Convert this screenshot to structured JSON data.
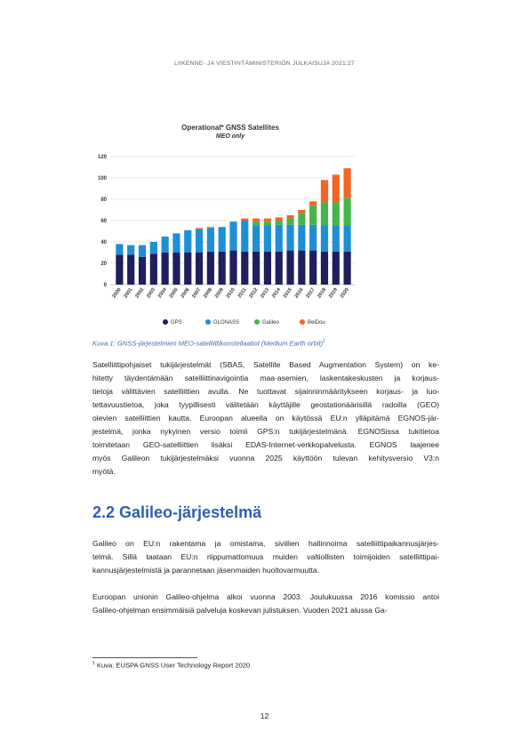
{
  "header": "LIIKENNE- JA VIESTINTÄMINISTERIÖN JULKAISUJA 2021:27",
  "figure": {
    "caption": "Kuva 1: GNSS-järjestelmien MEO-satelliittikonstellaatiot (Medium Earth orbit)",
    "caption_ref": "1"
  },
  "chart_data": {
    "type": "bar",
    "stacked": true,
    "title": "Operational* GNSS Satellites",
    "subtitle": "MEO only",
    "categories": [
      "2000",
      "2001",
      "2002",
      "2003",
      "2004",
      "2005",
      "2006",
      "2007",
      "2008",
      "2009",
      "2010",
      "2011",
      "2012",
      "2013",
      "2014",
      "2015",
      "2016",
      "2017",
      "2018",
      "2019",
      "2020"
    ],
    "ylim": [
      0,
      120
    ],
    "yticks": [
      0,
      20,
      40,
      60,
      80,
      100,
      120
    ],
    "grid": true,
    "legend_position": "bottom",
    "series": [
      {
        "name": "GPS",
        "color": "#1f1f5e",
        "values": [
          28,
          28,
          26,
          29,
          30,
          30,
          30,
          30,
          31,
          31,
          32,
          31,
          31,
          31,
          31,
          32,
          32,
          32,
          31,
          31,
          31
        ]
      },
      {
        "name": "GLONASS",
        "color": "#1e8fd5",
        "values": [
          10,
          9,
          11,
          11,
          15,
          18,
          21,
          22,
          22,
          23,
          27,
          29,
          24,
          24,
          25,
          24,
          24,
          24,
          24,
          24,
          24
        ]
      },
      {
        "name": "Galileo",
        "color": "#43b649",
        "values": [
          0,
          0,
          0,
          0,
          0,
          0,
          0,
          0,
          0,
          0,
          0,
          0,
          4,
          4,
          4,
          6,
          11,
          18,
          22,
          22,
          26
        ]
      },
      {
        "name": "BeiDou",
        "color": "#f26524",
        "values": [
          0,
          0,
          0,
          0,
          0,
          0,
          0,
          1,
          1,
          0,
          0,
          2,
          3,
          3,
          3,
          3,
          3,
          4,
          21,
          26,
          28
        ]
      }
    ]
  },
  "paragraph1": [
    "Satelliittipohjaiset tukijärjestelmät (SBAS, Satellite Based Augmentation System) on ke-",
    "hitetty täydentämään satelliittinavigointia maa-asemien, laskentakeskusten ja korjaus-",
    "tietoja välittävien satelliittien avulla. Ne tuottavat sijainninmääritykseen korjaus- ja luo-",
    "tettavuustietoa, joka tyypillisesti välitetään käyttäjille geostationäärisillä radoilla (GEO)",
    "olevien satelliittien kautta. Euroopan alueella on käytössä EU:n ylläpitämä EGNOS-jär-",
    "jestelmä, jonka nykyinen versio toimii GPS:n tukijärjestelmänä. EGNOSissa tukitietoa",
    "toimitetaan GEO-satelliittien lisäksi EDAS-Internet-verkkopalvelusta. EGNOS laajenee",
    "myös Galileon tukijärjestelmäksi vuonna 2025 käyttöön tulevan kehitysversio V3:n",
    "myötä."
  ],
  "heading": "2.2 Galileo-järjestelmä",
  "paragraph2": [
    "Galileo on EU:n rakentama ja omistama, siviilien hallinnoima satelliittipaikannusjärjes-",
    "telmä. Sillä taataan EU:n riippumattomuus muiden valtiollisten toimijoiden satelliittipai-",
    "kannusjärjestelmistä ja parannetaan jäsenmaiden huoltovarmuutta."
  ],
  "paragraph3": [
    "Euroopan unionin Galileo-ohjelma alkoi vuonna 2003. Joulukuussa 2016 komissio antoi",
    "Galileo-ohjelman ensimmäisiä palveluja koskevan julistuksen. Vuoden 2021 alussa Ga-"
  ],
  "footnote": {
    "ref": "1",
    "text": "Kuva: EUSPA GNSS User Technology Report 2020"
  },
  "page_number": "12"
}
